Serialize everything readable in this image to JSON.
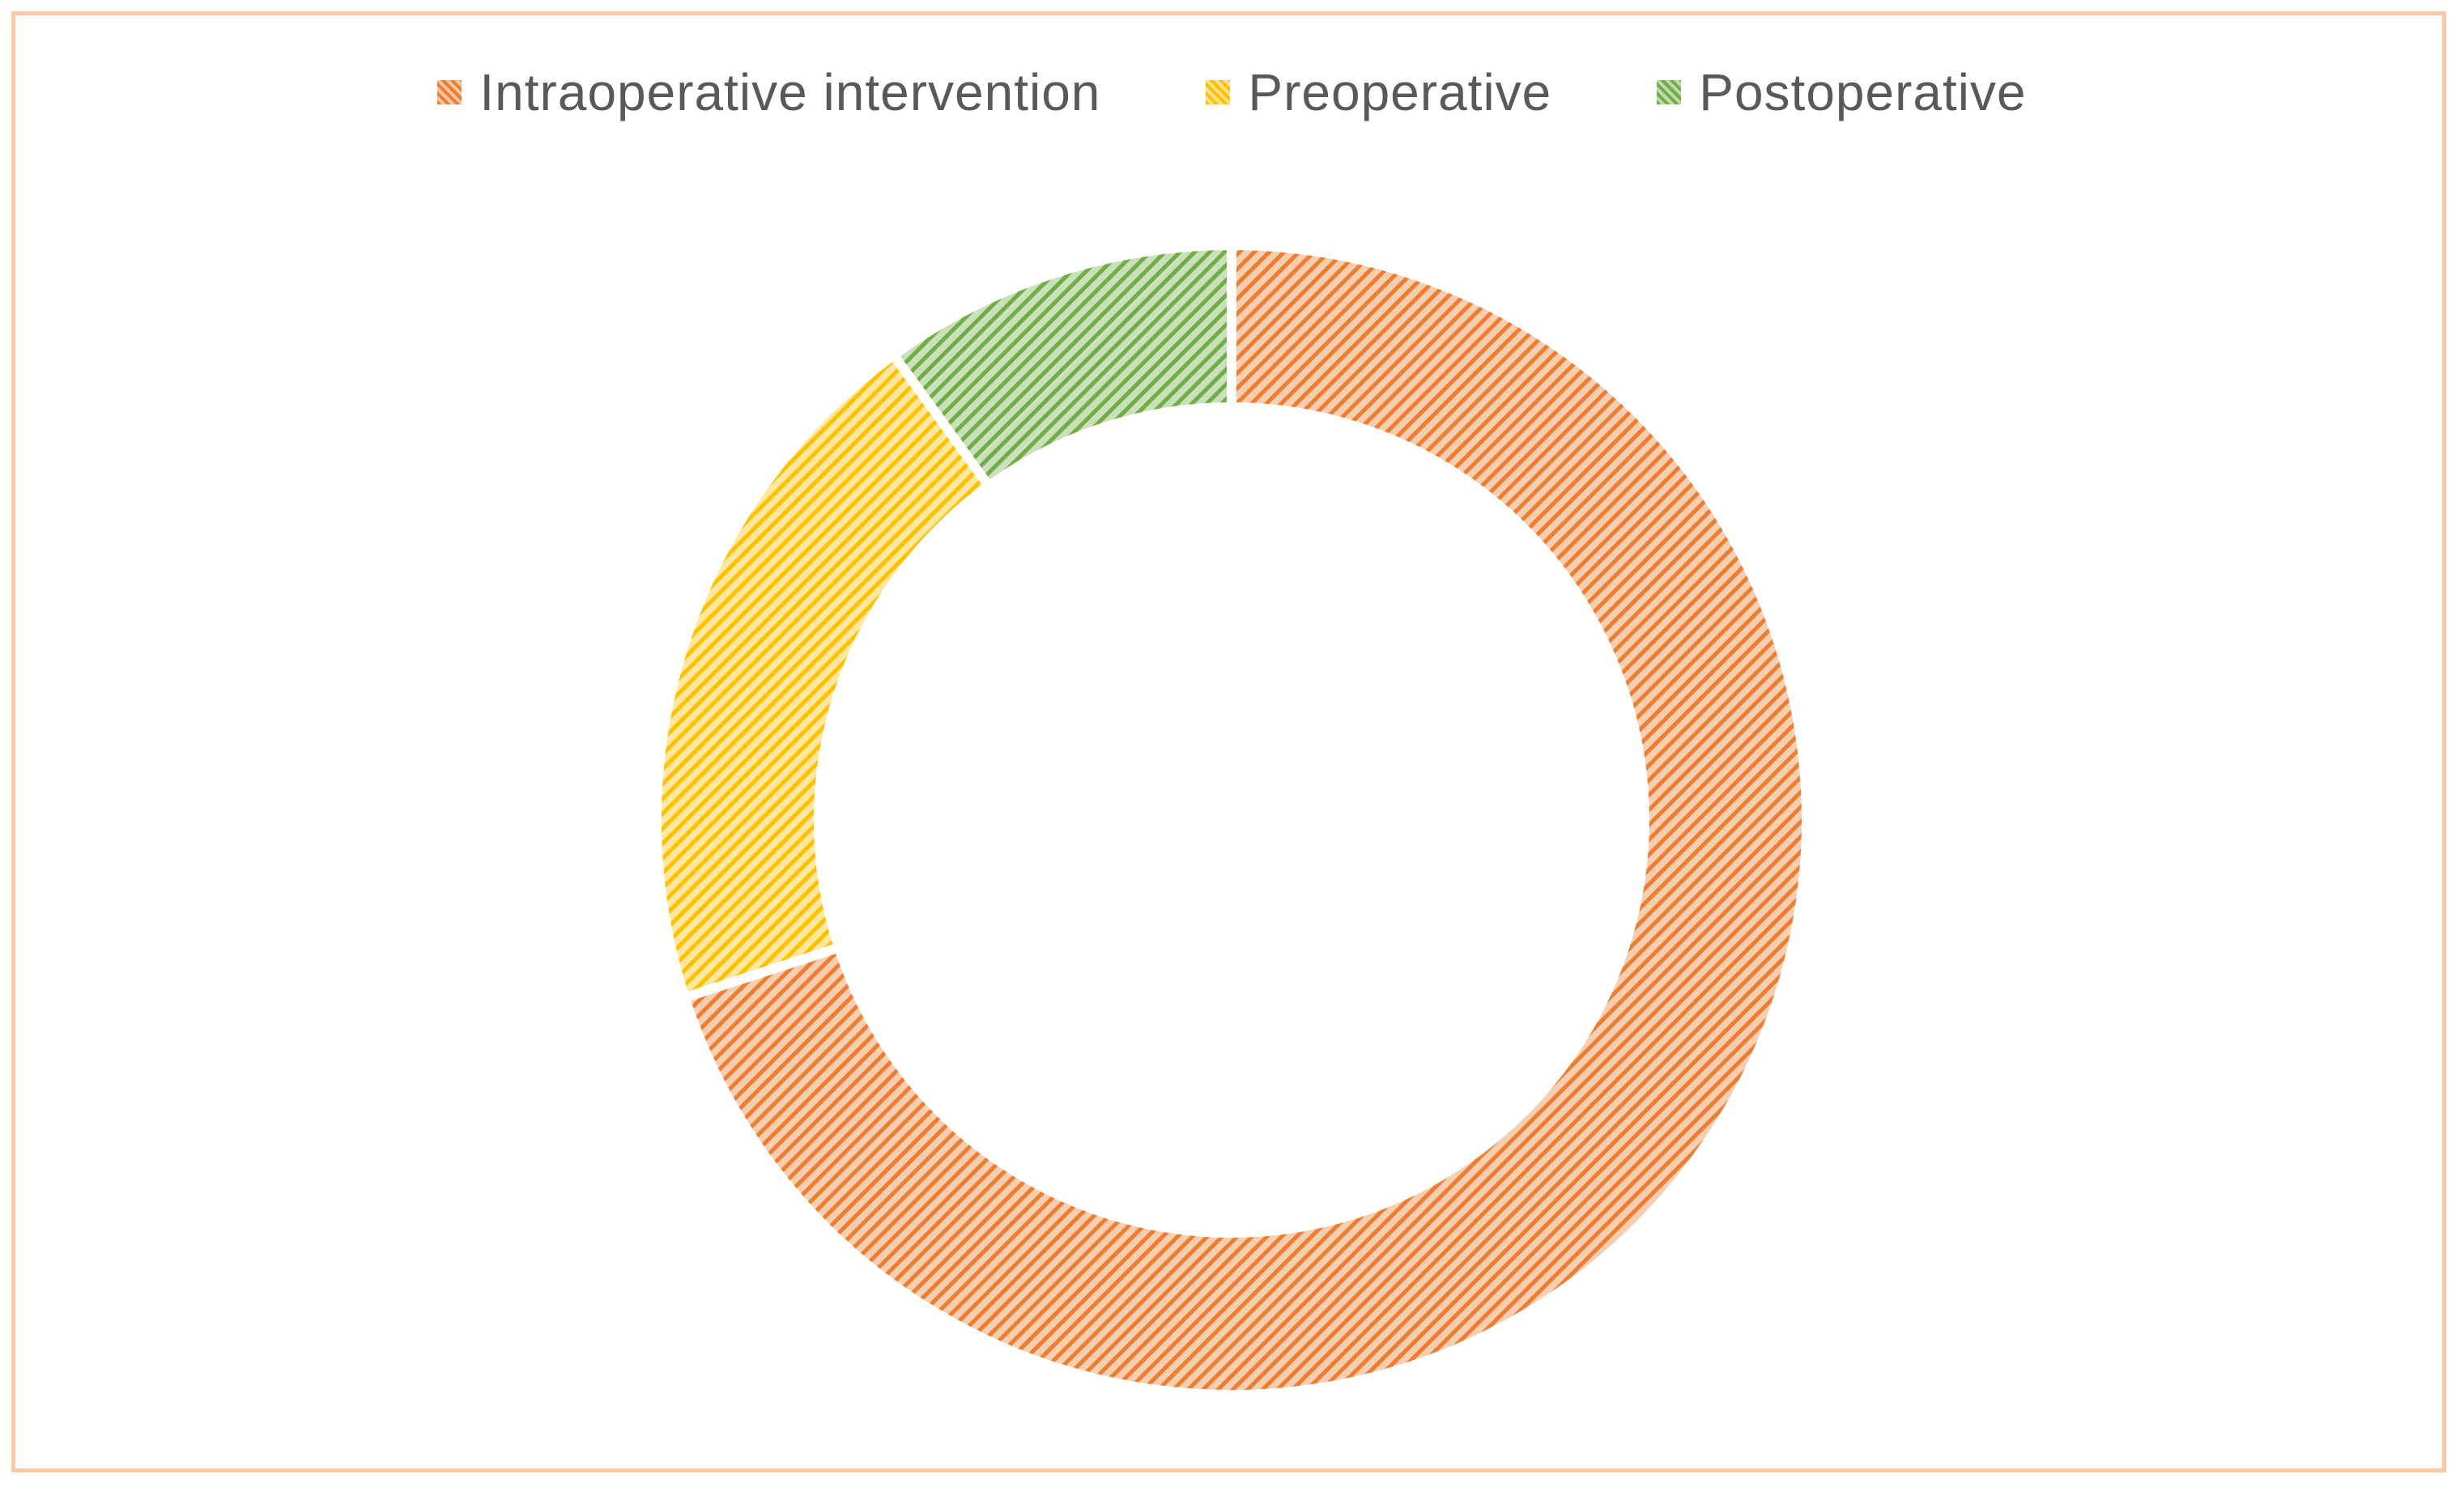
{
  "chart_data": {
    "type": "pie",
    "variant": "donut",
    "title": "",
    "legend_position": "top",
    "fill_style": "diagonal-hatch",
    "categories": [
      "Intraoperative intervention",
      "Preoperative",
      "Postoperative"
    ],
    "values": [
      70,
      20,
      10
    ],
    "value_unit": "percent",
    "colors": [
      "#ed7d31",
      "#ffc000",
      "#70ad47"
    ],
    "start_angle_deg": 0,
    "direction": "clockwise"
  },
  "frame": {
    "border_color": "#f8c8a8"
  }
}
